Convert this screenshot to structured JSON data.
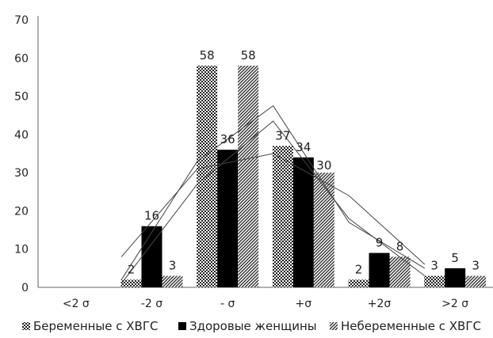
{
  "chart_data": {
    "type": "bar",
    "categories": [
      "<2 σ",
      "-2 σ",
      "- σ",
      "+σ",
      "+2σ",
      ">2 σ"
    ],
    "ylim": [
      0,
      70
    ],
    "yticks": [
      0,
      10,
      20,
      30,
      40,
      50,
      60,
      70
    ],
    "grid": false,
    "legend_position": "bottom",
    "series": [
      {
        "name": "Беременные с  ХВГС",
        "pattern": "checker",
        "values": [
          0,
          2,
          58,
          37,
          2,
          3
        ],
        "labels": [
          "",
          "2",
          "58",
          "37",
          "2",
          "3"
        ]
      },
      {
        "name": "Здоровые женщины",
        "pattern": "solid",
        "color": "#000000",
        "values": [
          0,
          16,
          36,
          34,
          9,
          5
        ],
        "labels": [
          "",
          "16",
          "36",
          "34",
          "9",
          "5"
        ]
      },
      {
        "name": "Небеременные с  ХВГС",
        "pattern": "diagonal",
        "values": [
          0,
          3,
          58,
          30,
          8,
          3
        ],
        "labels": [
          "",
          "3",
          "58",
          "30",
          "8",
          "3"
        ]
      }
    ],
    "trendlines": [
      {
        "x": [
          1.0,
          2.0,
          3.0,
          4.0,
          5.0
        ],
        "y": [
          2,
          33,
          47.5,
          17,
          5
        ]
      },
      {
        "x": [
          1.0,
          2.0,
          3.0,
          4.0,
          5.0
        ],
        "y": [
          1,
          27,
          43.5,
          18,
          3
        ]
      },
      {
        "x": [
          1.0,
          2.0,
          3.0,
          4.0,
          5.0
        ],
        "y": [
          8,
          31,
          35,
          24,
          6
        ]
      }
    ]
  }
}
